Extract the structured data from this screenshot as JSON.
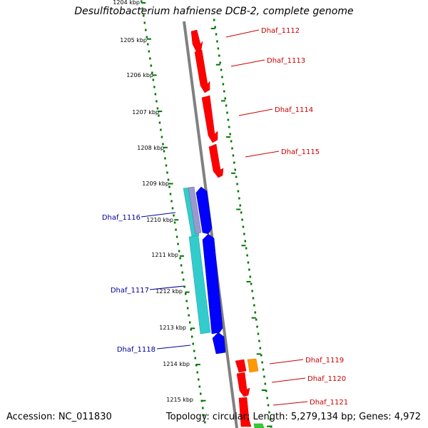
{
  "title": "Desulfitobacterium hafniense DCB-2, complete genome",
  "accession_text": "Accession: NC_011830",
  "topology_text": "Topology: circular; Length: 5,279,134 bp; Genes: 4,972",
  "ruler_labels": [
    "1204 kbp",
    "1205 kbp",
    "1206 kbp",
    "1207 kbp",
    "1208 kbp",
    "1209 kbp",
    "1210 kbp",
    "1211 kbp",
    "1212 kbp",
    "1213 kbp",
    "1214 kbp",
    "1215 kbp"
  ],
  "gene_labels": {
    "forward": [
      "Dhaf_1112",
      "Dhaf_1113",
      "Dhaf_1114",
      "Dhaf_1115",
      "Dhaf_1119",
      "Dhaf_1120",
      "Dhaf_1121"
    ],
    "reverse": [
      "Dhaf_1116",
      "Dhaf_1117",
      "Dhaf_1118"
    ]
  },
  "colors": {
    "forward_gene": "#ff0000",
    "forward_label": "#cc0000",
    "reverse_gene": "#0000ff",
    "reverse_label": "#000099",
    "feature_cyan": "#33cccc",
    "feature_orange": "#ff9900",
    "feature_green": "#33cc33",
    "feature_purple": "#9999cc",
    "backbone": "#808080",
    "tick_green": "#007700"
  }
}
